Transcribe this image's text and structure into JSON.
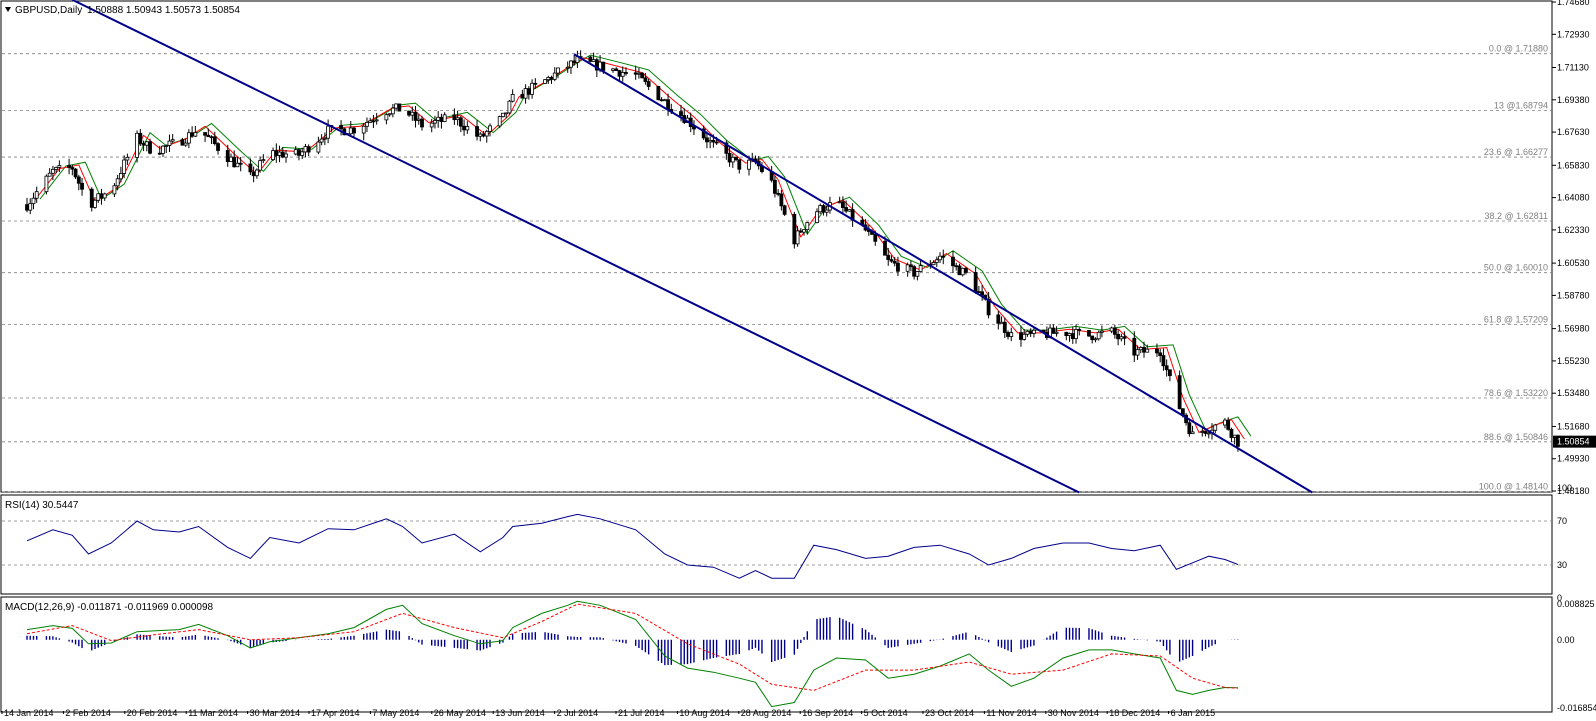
{
  "header": {
    "symbol_label": "GBPUSD,Daily",
    "ohlc": "1.50888 1.50943 1.50573 1.50854",
    "menu_arrow": "triangle-down-icon"
  },
  "colors": {
    "candle": "#000000",
    "ma_fast": "#ff0000",
    "ma_slow": "#008000",
    "channel": "#00008b",
    "rsi_line": "#00008b",
    "macd_hist": "#00008b",
    "macd_line": "#008000",
    "macd_signal": "#ff0000",
    "grid_dash": "#808080",
    "fib_text": "#808080",
    "price_tag_bg": "#000000",
    "price_tag_fg": "#ffffff"
  },
  "chart_data": [
    {
      "type": "candlestick",
      "title": "GBPUSD,Daily",
      "subtitle": "1.50888 1.50943 1.50573 1.50854",
      "date_range": [
        "2014-01-14",
        "2015-01-23"
      ],
      "price_axis": {
        "ylim": [
          1.4818,
          1.7468
        ],
        "ticks": [
          "1.74680",
          "1.72930",
          "1.71130",
          "1.69380",
          "1.67630",
          "1.65830",
          "1.64080",
          "1.62330",
          "1.60530",
          "1.58780",
          "1.56980",
          "1.55230",
          "1.53480",
          "1.51680",
          "1.49930",
          "1.48180"
        ],
        "current_price": "1.50854"
      },
      "x_ticks": [
        "14 Jan 2014",
        "2 Feb 2014",
        "20 Feb 2014",
        "11 Mar 2014",
        "30 Mar 2014",
        "17 Apr 2014",
        "7 May 2014",
        "26 May 2014",
        "13 Jun 2014",
        "2 Jul 2014",
        "21 Jul 2014",
        "10 Aug 2014",
        "28 Aug 2014",
        "16 Sep 2014",
        "5 Oct 2014",
        "23 Oct 2014",
        "11 Nov 2014",
        "30 Nov 2014",
        "18 Dec 2014",
        "6 Jan 2015"
      ],
      "fibonacci_levels": [
        {
          "label": "0.0 @ 1.71880",
          "price": 1.7188
        },
        {
          "label": "13 @1.68794",
          "price": 1.68794
        },
        {
          "label": "23.6 @ 1.66277",
          "price": 1.66277
        },
        {
          "label": "38.2 @ 1.62811",
          "price": 1.62811
        },
        {
          "label": "50.0 @ 1.60010",
          "price": 1.6001
        },
        {
          "label": "61.8 @ 1.57209",
          "price": 1.57209
        },
        {
          "label": "78.6 @ 1.53220",
          "price": 1.5322
        },
        {
          "label": "88.6 @ 1.50846",
          "price": 1.50846
        },
        {
          "label": "100.0 @ 1.48140",
          "price": 1.4814
        }
      ],
      "price_path": [
        [
          "2014-01-14",
          1.637
        ],
        [
          "2014-01-22",
          1.655
        ],
        [
          "2014-01-28",
          1.657
        ],
        [
          "2014-02-02",
          1.637
        ],
        [
          "2014-02-09",
          1.645
        ],
        [
          "2014-02-17",
          1.673
        ],
        [
          "2014-02-22",
          1.666
        ],
        [
          "2014-03-02",
          1.671
        ],
        [
          "2014-03-08",
          1.678
        ],
        [
          "2014-03-17",
          1.663
        ],
        [
          "2014-03-24",
          1.652
        ],
        [
          "2014-03-30",
          1.665
        ],
        [
          "2014-04-08",
          1.664
        ],
        [
          "2014-04-17",
          1.677
        ],
        [
          "2014-04-25",
          1.678
        ],
        [
          "2014-05-05",
          1.688
        ],
        [
          "2014-05-10",
          1.689
        ],
        [
          "2014-05-16",
          1.68
        ],
        [
          "2014-05-26",
          1.684
        ],
        [
          "2014-06-03",
          1.673
        ],
        [
          "2014-06-10",
          1.684
        ],
        [
          "2014-06-13",
          1.694
        ],
        [
          "2014-06-22",
          1.703
        ],
        [
          "2014-06-30",
          1.712
        ],
        [
          "2014-07-03",
          1.715
        ],
        [
          "2014-07-10",
          1.712
        ],
        [
          "2014-07-21",
          1.707
        ],
        [
          "2014-07-30",
          1.693
        ],
        [
          "2014-08-06",
          1.683
        ],
        [
          "2014-08-14",
          1.669
        ],
        [
          "2014-08-22",
          1.658
        ],
        [
          "2014-08-27",
          1.66
        ],
        [
          "2014-09-01",
          1.649
        ],
        [
          "2014-09-08",
          1.618
        ],
        [
          "2014-09-14",
          1.633
        ],
        [
          "2014-09-21",
          1.638
        ],
        [
          "2014-09-30",
          1.623
        ],
        [
          "2014-10-07",
          1.606
        ],
        [
          "2014-10-15",
          1.6
        ],
        [
          "2014-10-23",
          1.609
        ],
        [
          "2014-11-01",
          1.598
        ],
        [
          "2014-11-07",
          1.58
        ],
        [
          "2014-11-14",
          1.566
        ],
        [
          "2014-11-21",
          1.566
        ],
        [
          "2014-11-30",
          1.568
        ],
        [
          "2014-12-08",
          1.566
        ],
        [
          "2014-12-15",
          1.568
        ],
        [
          "2014-12-22",
          1.557
        ],
        [
          "2014-12-30",
          1.558
        ],
        [
          "2015-01-04",
          1.531
        ],
        [
          "2015-01-09",
          1.512
        ],
        [
          "2015-01-14",
          1.516
        ],
        [
          "2015-01-19",
          1.519
        ],
        [
          "2015-01-23",
          1.5085
        ]
      ],
      "trendlines": [
        {
          "name": "channel-upper",
          "points": [
            [
              "2014-07-02",
              1.7185
            ],
            [
              "2015-02-15",
              1.481
            ]
          ]
        },
        {
          "name": "channel-lower",
          "points": [
            [
              "2014-01-28",
              1.748
            ],
            [
              "2014-12-05",
              1.481
            ]
          ]
        }
      ]
    },
    {
      "type": "line",
      "title": "RSI(14) 30.5447",
      "ylim": [
        0,
        100
      ],
      "ticks": [
        "100",
        "70",
        "30",
        "0"
      ],
      "levels": [
        70,
        30
      ],
      "rsi_path": [
        [
          "2014-01-14",
          52
        ],
        [
          "2014-01-22",
          62
        ],
        [
          "2014-01-28",
          57
        ],
        [
          "2014-02-02",
          40
        ],
        [
          "2014-02-09",
          50
        ],
        [
          "2014-02-17",
          70
        ],
        [
          "2014-02-22",
          62
        ],
        [
          "2014-03-02",
          60
        ],
        [
          "2014-03-08",
          65
        ],
        [
          "2014-03-17",
          46
        ],
        [
          "2014-03-24",
          36
        ],
        [
          "2014-03-30",
          55
        ],
        [
          "2014-04-08",
          50
        ],
        [
          "2014-04-17",
          63
        ],
        [
          "2014-04-25",
          62
        ],
        [
          "2014-05-05",
          72
        ],
        [
          "2014-05-10",
          65
        ],
        [
          "2014-05-16",
          50
        ],
        [
          "2014-05-26",
          58
        ],
        [
          "2014-06-03",
          42
        ],
        [
          "2014-06-10",
          55
        ],
        [
          "2014-06-13",
          65
        ],
        [
          "2014-06-22",
          68
        ],
        [
          "2014-06-30",
          74
        ],
        [
          "2014-07-03",
          76
        ],
        [
          "2014-07-10",
          72
        ],
        [
          "2014-07-21",
          62
        ],
        [
          "2014-07-30",
          40
        ],
        [
          "2014-08-06",
          30
        ],
        [
          "2014-08-14",
          28
        ],
        [
          "2014-08-22",
          18
        ],
        [
          "2014-08-27",
          25
        ],
        [
          "2014-09-01",
          18
        ],
        [
          "2014-09-08",
          18
        ],
        [
          "2014-09-14",
          48
        ],
        [
          "2014-09-21",
          44
        ],
        [
          "2014-09-30",
          36
        ],
        [
          "2014-10-07",
          38
        ],
        [
          "2014-10-15",
          46
        ],
        [
          "2014-10-23",
          48
        ],
        [
          "2014-11-01",
          40
        ],
        [
          "2014-11-07",
          30
        ],
        [
          "2014-11-14",
          36
        ],
        [
          "2014-11-21",
          45
        ],
        [
          "2014-11-30",
          50
        ],
        [
          "2014-12-08",
          50
        ],
        [
          "2014-12-15",
          45
        ],
        [
          "2014-12-22",
          43
        ],
        [
          "2014-12-30",
          48
        ],
        [
          "2015-01-04",
          26
        ],
        [
          "2015-01-09",
          32
        ],
        [
          "2015-01-14",
          38
        ],
        [
          "2015-01-19",
          35
        ],
        [
          "2015-01-23",
          30.5
        ]
      ]
    },
    {
      "type": "line",
      "title": "MACD(12,26,9) -0.011871 -0.011969 0.000098",
      "ylim": [
        -0.01685,
        0.00883
      ],
      "ticks": [
        "0.008825",
        "0.00",
        "-0.016854"
      ],
      "macd_path": [
        [
          "2014-01-14",
          0.0025
        ],
        [
          "2014-01-22",
          0.0035
        ],
        [
          "2014-01-28",
          0.0028
        ],
        [
          "2014-02-02",
          -0.001
        ],
        [
          "2014-02-09",
          -0.0008
        ],
        [
          "2014-02-17",
          0.002
        ],
        [
          "2014-02-22",
          0.0022
        ],
        [
          "2014-03-02",
          0.0025
        ],
        [
          "2014-03-08",
          0.0038
        ],
        [
          "2014-03-17",
          0.001
        ],
        [
          "2014-03-24",
          -0.002
        ],
        [
          "2014-03-30",
          -0.0005
        ],
        [
          "2014-04-08",
          0.0005
        ],
        [
          "2014-04-17",
          0.0015
        ],
        [
          "2014-04-25",
          0.003
        ],
        [
          "2014-05-05",
          0.0075
        ],
        [
          "2014-05-10",
          0.0085
        ],
        [
          "2014-05-16",
          0.004
        ],
        [
          "2014-05-26",
          0.001
        ],
        [
          "2014-06-03",
          -0.001
        ],
        [
          "2014-06-10",
          -0.0002
        ],
        [
          "2014-06-13",
          0.003
        ],
        [
          "2014-06-22",
          0.0065
        ],
        [
          "2014-06-30",
          0.0085
        ],
        [
          "2014-07-03",
          0.0095
        ],
        [
          "2014-07-10",
          0.0085
        ],
        [
          "2014-07-21",
          0.005
        ],
        [
          "2014-07-30",
          -0.004
        ],
        [
          "2014-08-06",
          -0.007
        ],
        [
          "2014-08-14",
          -0.008
        ],
        [
          "2014-08-22",
          -0.0095
        ],
        [
          "2014-08-27",
          -0.0105
        ],
        [
          "2014-09-01",
          -0.0165
        ],
        [
          "2014-09-08",
          -0.0155
        ],
        [
          "2014-09-14",
          -0.0075
        ],
        [
          "2014-09-21",
          -0.0045
        ],
        [
          "2014-09-30",
          -0.005
        ],
        [
          "2014-10-07",
          -0.0095
        ],
        [
          "2014-10-15",
          -0.0085
        ],
        [
          "2014-10-23",
          -0.0065
        ],
        [
          "2014-11-01",
          -0.0035
        ],
        [
          "2014-11-07",
          -0.0075
        ],
        [
          "2014-11-14",
          -0.0115
        ],
        [
          "2014-11-21",
          -0.0095
        ],
        [
          "2014-11-30",
          -0.0045
        ],
        [
          "2014-12-08",
          -0.0025
        ],
        [
          "2014-12-15",
          -0.0025
        ],
        [
          "2014-12-22",
          -0.0035
        ],
        [
          "2014-12-30",
          -0.0045
        ],
        [
          "2015-01-04",
          -0.0125
        ],
        [
          "2015-01-09",
          -0.0135
        ],
        [
          "2015-01-14",
          -0.0125
        ],
        [
          "2015-01-19",
          -0.0118
        ],
        [
          "2015-01-23",
          -0.011871
        ]
      ],
      "signal_path": [
        [
          "2014-01-14",
          0.0015
        ],
        [
          "2014-01-28",
          0.0035
        ],
        [
          "2014-02-09",
          -0.0002
        ],
        [
          "2014-02-22",
          0.0012
        ],
        [
          "2014-03-08",
          0.0025
        ],
        [
          "2014-03-24",
          0.0
        ],
        [
          "2014-04-08",
          0.0005
        ],
        [
          "2014-04-25",
          0.002
        ],
        [
          "2014-05-10",
          0.0065
        ],
        [
          "2014-05-26",
          0.003
        ],
        [
          "2014-06-10",
          0.0005
        ],
        [
          "2014-06-22",
          0.0045
        ],
        [
          "2014-07-03",
          0.0088
        ],
        [
          "2014-07-21",
          0.0065
        ],
        [
          "2014-08-06",
          -0.001
        ],
        [
          "2014-08-22",
          -0.006
        ],
        [
          "2014-09-01",
          -0.011
        ],
        [
          "2014-09-14",
          -0.0125
        ],
        [
          "2014-09-30",
          -0.0075
        ],
        [
          "2014-10-15",
          -0.0075
        ],
        [
          "2014-11-01",
          -0.0055
        ],
        [
          "2014-11-14",
          -0.0085
        ],
        [
          "2014-11-30",
          -0.0075
        ],
        [
          "2014-12-15",
          -0.0035
        ],
        [
          "2014-12-30",
          -0.004
        ],
        [
          "2015-01-09",
          -0.0095
        ],
        [
          "2015-01-19",
          -0.0118
        ],
        [
          "2015-01-23",
          -0.011969
        ]
      ]
    }
  ]
}
